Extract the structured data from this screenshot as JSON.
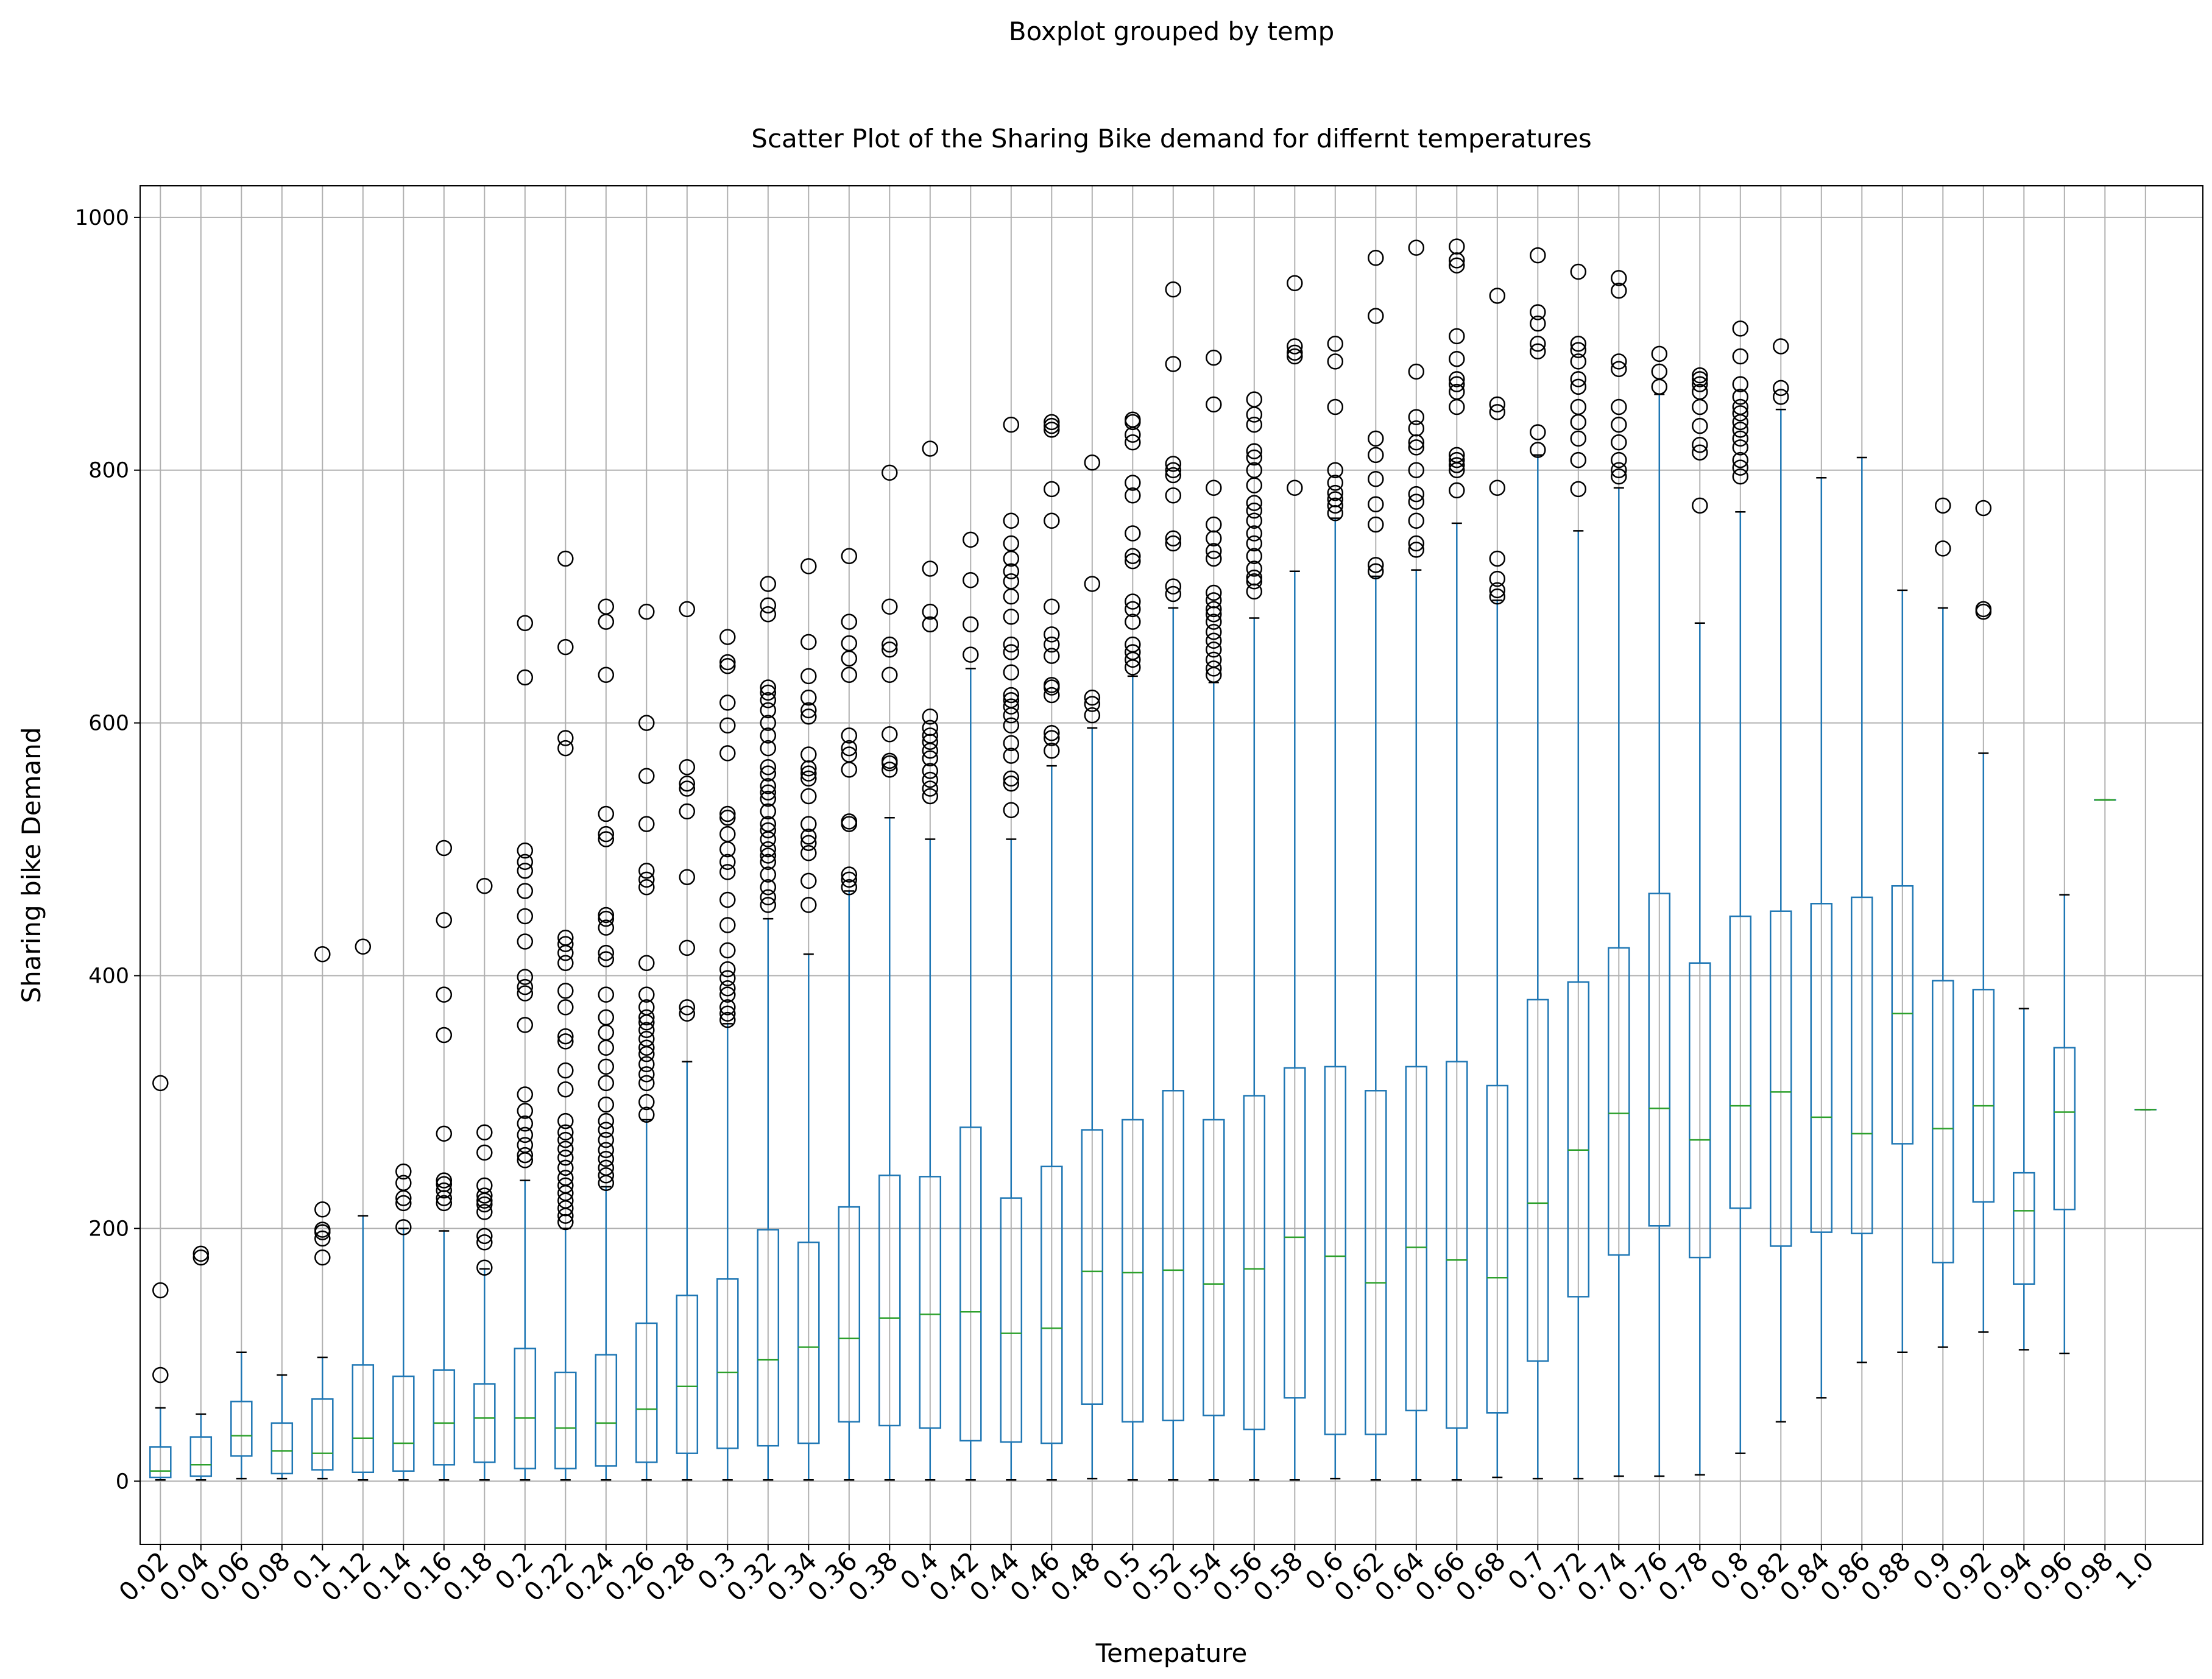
{
  "suptitle": "Boxplot grouped by temp",
  "chart_data": {
    "type": "boxplot",
    "title": "Scatter Plot of the Sharing Bike demand for differnt temperatures",
    "xlabel": "Temepature",
    "ylabel": "Sharing bike Demand",
    "ylim": [
      -50,
      1025
    ],
    "yticks": [
      0,
      200,
      400,
      600,
      800,
      1000
    ],
    "grid": true,
    "colors": {
      "box": "#1f77b4",
      "median": "#2ca02c",
      "flier": "#000000",
      "grid": "#b0b0b0"
    },
    "categories": [
      "0.02",
      "0.04",
      "0.06",
      "0.08",
      "0.1",
      "0.12",
      "0.14",
      "0.16",
      "0.18",
      "0.2",
      "0.22",
      "0.24",
      "0.26",
      "0.28",
      "0.3",
      "0.32",
      "0.34",
      "0.36",
      "0.38",
      "0.4",
      "0.42",
      "0.44",
      "0.46",
      "0.48",
      "0.5",
      "0.52",
      "0.54",
      "0.56",
      "0.58",
      "0.6",
      "0.62",
      "0.64",
      "0.66",
      "0.68",
      "0.7",
      "0.72",
      "0.74",
      "0.76",
      "0.78",
      "0.8",
      "0.82",
      "0.84",
      "0.86",
      "0.88",
      "0.9",
      "0.92",
      "0.94",
      "0.96",
      "0.98",
      "1.0"
    ],
    "boxes": [
      {
        "whislo": 1,
        "q1": 3,
        "med": 8,
        "q3": 27,
        "whishi": 58,
        "fliers": [
          84,
          151,
          315
        ]
      },
      {
        "whislo": 1,
        "q1": 4,
        "med": 13,
        "q3": 35,
        "whishi": 53,
        "fliers": [
          177,
          180
        ]
      },
      {
        "whislo": 2,
        "q1": 20,
        "med": 36,
        "q3": 63,
        "whishi": 102,
        "fliers": []
      },
      {
        "whislo": 2,
        "q1": 6,
        "med": 24,
        "q3": 46,
        "whishi": 84,
        "fliers": []
      },
      {
        "whislo": 2,
        "q1": 9,
        "med": 22,
        "q3": 65,
        "whishi": 98,
        "fliers": [
          177,
          192,
          197,
          199,
          215,
          417
        ]
      },
      {
        "whislo": 1,
        "q1": 7,
        "med": 34,
        "q3": 92,
        "whishi": 210,
        "fliers": [
          423
        ]
      },
      {
        "whislo": 1,
        "q1": 8,
        "med": 30,
        "q3": 83,
        "whishi": 200,
        "fliers": [
          201,
          220,
          224,
          236,
          245
        ]
      },
      {
        "whislo": 1,
        "q1": 13,
        "med": 46,
        "q3": 88,
        "whishi": 198,
        "fliers": [
          220,
          224,
          230,
          235,
          238,
          275,
          353,
          385,
          444,
          501
        ]
      },
      {
        "whislo": 1,
        "q1": 15,
        "med": 50,
        "q3": 77,
        "whishi": 168,
        "fliers": [
          169,
          189,
          194,
          213,
          219,
          222,
          226,
          234,
          260,
          276,
          471
        ]
      },
      {
        "whislo": 1,
        "q1": 10,
        "med": 50,
        "q3": 105,
        "whishi": 238,
        "fliers": [
          254,
          258,
          266,
          274,
          283,
          293,
          306,
          361,
          386,
          391,
          399,
          427,
          447,
          467,
          483,
          490,
          499,
          636,
          679
        ]
      },
      {
        "whislo": 1,
        "q1": 10,
        "med": 42,
        "q3": 86,
        "whishi": 200,
        "fliers": [
          205,
          210,
          216,
          222,
          228,
          234,
          240,
          248,
          256,
          263,
          270,
          276,
          285,
          310,
          325,
          348,
          352,
          375,
          388,
          410,
          418,
          425,
          430,
          580,
          588,
          660,
          730
        ]
      },
      {
        "whislo": 1,
        "q1": 12,
        "med": 46,
        "q3": 100,
        "whishi": 233,
        "fliers": [
          236,
          242,
          248,
          255,
          262,
          270,
          278,
          285,
          298,
          315,
          328,
          343,
          355,
          367,
          385,
          413,
          418,
          438,
          445,
          448,
          508,
          512,
          528,
          638,
          680,
          692
        ]
      },
      {
        "whislo": 1,
        "q1": 15,
        "med": 57,
        "q3": 125,
        "whishi": 286,
        "fliers": [
          290,
          300,
          315,
          322,
          330,
          338,
          343,
          350,
          357,
          363,
          367,
          375,
          385,
          410,
          470,
          476,
          483,
          520,
          558,
          600,
          688
        ]
      },
      {
        "whislo": 1,
        "q1": 22,
        "med": 75,
        "q3": 147,
        "whishi": 332,
        "fliers": [
          370,
          375,
          422,
          478,
          530,
          548,
          552,
          565,
          690
        ]
      },
      {
        "whislo": 1,
        "q1": 26,
        "med": 86,
        "q3": 160,
        "whishi": 362,
        "fliers": [
          365,
          370,
          375,
          385,
          390,
          398,
          405,
          420,
          440,
          460,
          482,
          490,
          500,
          512,
          525,
          528,
          576,
          598,
          616,
          645,
          648,
          668
        ]
      },
      {
        "whislo": 1,
        "q1": 28,
        "med": 96,
        "q3": 199,
        "whishi": 445,
        "fliers": [
          456,
          462,
          470,
          480,
          490,
          495,
          500,
          508,
          515,
          520,
          530,
          540,
          545,
          550,
          560,
          565,
          580,
          590,
          600,
          610,
          618,
          624,
          628,
          686,
          693,
          710
        ]
      },
      {
        "whislo": 1,
        "q1": 30,
        "med": 106,
        "q3": 189,
        "whishi": 417,
        "fliers": [
          456,
          475,
          497,
          505,
          510,
          520,
          542,
          556,
          560,
          564,
          575,
          605,
          610,
          620,
          637,
          664,
          724
        ]
      },
      {
        "whislo": 1,
        "q1": 47,
        "med": 113,
        "q3": 217,
        "whishi": 467,
        "fliers": [
          470,
          476,
          480,
          520,
          522,
          563,
          575,
          580,
          590,
          638,
          651,
          663,
          680,
          732
        ]
      },
      {
        "whislo": 1,
        "q1": 44,
        "med": 129,
        "q3": 242,
        "whishi": 525,
        "fliers": [
          563,
          568,
          570,
          591,
          638,
          658,
          662,
          692,
          798
        ]
      },
      {
        "whislo": 1,
        "q1": 42,
        "med": 132,
        "q3": 241,
        "whishi": 508,
        "fliers": [
          542,
          548,
          555,
          562,
          572,
          578,
          585,
          590,
          596,
          605,
          678,
          688,
          722,
          817
        ]
      },
      {
        "whislo": 1,
        "q1": 32,
        "med": 134,
        "q3": 280,
        "whishi": 643,
        "fliers": [
          654,
          678,
          713,
          745
        ]
      },
      {
        "whislo": 1,
        "q1": 31,
        "med": 117,
        "q3": 224,
        "whishi": 508,
        "fliers": [
          531,
          552,
          556,
          574,
          584,
          598,
          606,
          613,
          618,
          622,
          640,
          656,
          662,
          684,
          700,
          712,
          720,
          730,
          742,
          760,
          836
        ]
      },
      {
        "whislo": 1,
        "q1": 30,
        "med": 121,
        "q3": 249,
        "whishi": 566,
        "fliers": [
          578,
          588,
          592,
          622,
          628,
          630,
          653,
          662,
          670,
          692,
          760,
          785,
          832,
          835,
          838
        ]
      },
      {
        "whislo": 2,
        "q1": 61,
        "med": 166,
        "q3": 278,
        "whishi": 596,
        "fliers": [
          606,
          615,
          620,
          710,
          806
        ]
      },
      {
        "whislo": 1,
        "q1": 47,
        "med": 165,
        "q3": 286,
        "whishi": 637,
        "fliers": [
          644,
          650,
          656,
          662,
          680,
          690,
          696,
          728,
          732,
          750,
          780,
          790,
          822,
          828,
          838,
          840
        ]
      },
      {
        "whislo": 1,
        "q1": 48,
        "med": 167,
        "q3": 309,
        "whishi": 691,
        "fliers": [
          702,
          708,
          742,
          746,
          780,
          796,
          800,
          805,
          884,
          943
        ]
      },
      {
        "whislo": 1,
        "q1": 52,
        "med": 156,
        "q3": 286,
        "whishi": 632,
        "fliers": [
          638,
          643,
          650,
          658,
          665,
          672,
          680,
          686,
          690,
          697,
          703,
          730,
          736,
          746,
          757,
          786,
          852,
          889
        ]
      },
      {
        "whislo": 1,
        "q1": 41,
        "med": 168,
        "q3": 305,
        "whishi": 683,
        "fliers": [
          704,
          712,
          715,
          722,
          732,
          742,
          750,
          760,
          768,
          774,
          788,
          800,
          810,
          815,
          836,
          844,
          856
        ]
      },
      {
        "whislo": 1,
        "q1": 66,
        "med": 193,
        "q3": 327,
        "whishi": 720,
        "fliers": [
          786,
          890,
          893,
          898,
          948
        ]
      },
      {
        "whislo": 2,
        "q1": 37,
        "med": 178,
        "q3": 328,
        "whishi": 762,
        "fliers": [
          766,
          772,
          777,
          782,
          790,
          800,
          850,
          886,
          900
        ]
      },
      {
        "whislo": 1,
        "q1": 37,
        "med": 157,
        "q3": 309,
        "whishi": 716,
        "fliers": [
          720,
          725,
          757,
          773,
          793,
          812,
          825,
          922,
          968
        ]
      },
      {
        "whislo": 1,
        "q1": 56,
        "med": 185,
        "q3": 328,
        "whishi": 721,
        "fliers": [
          737,
          742,
          760,
          775,
          781,
          800,
          818,
          822,
          833,
          842,
          878,
          976
        ]
      },
      {
        "whislo": 1,
        "q1": 42,
        "med": 175,
        "q3": 332,
        "whishi": 758,
        "fliers": [
          784,
          800,
          804,
          808,
          812,
          850,
          862,
          868,
          872,
          888,
          906,
          962,
          966,
          977
        ]
      },
      {
        "whislo": 3,
        "q1": 54,
        "med": 161,
        "q3": 313,
        "whishi": 697,
        "fliers": [
          700,
          705,
          714,
          730,
          786,
          846,
          852,
          938
        ]
      },
      {
        "whislo": 2,
        "q1": 95,
        "med": 220,
        "q3": 381,
        "whishi": 812,
        "fliers": [
          816,
          830,
          894,
          900,
          916,
          925,
          970
        ]
      },
      {
        "whislo": 2,
        "q1": 146,
        "med": 262,
        "q3": 395,
        "whishi": 752,
        "fliers": [
          785,
          808,
          825,
          838,
          850,
          866,
          872,
          886,
          895,
          900,
          957
        ]
      },
      {
        "whislo": 4,
        "q1": 179,
        "med": 291,
        "q3": 422,
        "whishi": 786,
        "fliers": [
          795,
          800,
          808,
          822,
          836,
          850,
          880,
          886,
          942,
          952
        ]
      },
      {
        "whislo": 4,
        "q1": 202,
        "med": 295,
        "q3": 465,
        "whishi": 860,
        "fliers": [
          866,
          878,
          892
        ]
      },
      {
        "whislo": 5,
        "q1": 177,
        "med": 270,
        "q3": 410,
        "whishi": 679,
        "fliers": [
          772,
          814,
          820,
          835,
          850,
          862,
          868,
          872,
          875
        ]
      },
      {
        "whislo": 22,
        "q1": 216,
        "med": 297,
        "q3": 447,
        "whishi": 767,
        "fliers": [
          795,
          802,
          808,
          818,
          825,
          832,
          838,
          845,
          850,
          858,
          868,
          890,
          912
        ]
      },
      {
        "whislo": 47,
        "q1": 186,
        "med": 308,
        "q3": 451,
        "whishi": 848,
        "fliers": [
          858,
          865,
          898
        ]
      },
      {
        "whislo": 66,
        "q1": 197,
        "med": 288,
        "q3": 457,
        "whishi": 794,
        "fliers": []
      },
      {
        "whislo": 94,
        "q1": 196,
        "med": 275,
        "q3": 462,
        "whishi": 810,
        "fliers": []
      },
      {
        "whislo": 102,
        "q1": 267,
        "med": 370,
        "q3": 471,
        "whishi": 705,
        "fliers": []
      },
      {
        "whislo": 106,
        "q1": 173,
        "med": 279,
        "q3": 396,
        "whishi": 691,
        "fliers": [
          738,
          772
        ]
      },
      {
        "whislo": 118,
        "q1": 221,
        "med": 297,
        "q3": 389,
        "whishi": 576,
        "fliers": [
          688,
          690,
          770
        ]
      },
      {
        "whislo": 104,
        "q1": 156,
        "med": 214,
        "q3": 244,
        "whishi": 374,
        "fliers": []
      },
      {
        "whislo": 101,
        "q1": 215,
        "med": 292,
        "q3": 343,
        "whishi": 464,
        "fliers": []
      },
      {
        "whislo": 539,
        "q1": 539,
        "med": 539,
        "q3": 539,
        "whishi": 539,
        "fliers": []
      },
      {
        "whislo": 294,
        "q1": 294,
        "med": 294,
        "q3": 294,
        "whishi": 294,
        "fliers": []
      }
    ]
  }
}
